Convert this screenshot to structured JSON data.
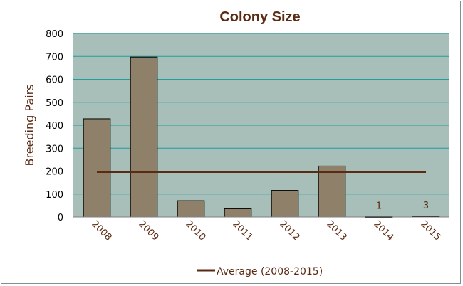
{
  "chart_data": {
    "type": "bar",
    "title": "Colony Size",
    "ylabel": "Breeding Pairs",
    "xlabel": "",
    "categories": [
      "2008",
      "2009",
      "2010",
      "2011",
      "2012",
      "2013",
      "2014",
      "2015"
    ],
    "series": [
      {
        "values": [
          428,
          697,
          71,
          36,
          116,
          222,
          1,
          3
        ]
      }
    ],
    "data_labels": {
      "2014": "1",
      "2015": "3"
    },
    "average_line": {
      "name": "Average (2008-2015)",
      "value": 197
    },
    "ylim": [
      0,
      800
    ],
    "yticks": [
      0,
      100,
      200,
      300,
      400,
      500,
      600,
      700,
      800
    ],
    "grid": true,
    "legend_position": "bottom",
    "colors": {
      "plot_background": "#a7bfb8",
      "bar_fill": "#8f806a",
      "bar_stroke": "#000000",
      "average_line": "#5b2a12",
      "gridline": "#1f9fa0",
      "text": "#5b2a12"
    }
  }
}
